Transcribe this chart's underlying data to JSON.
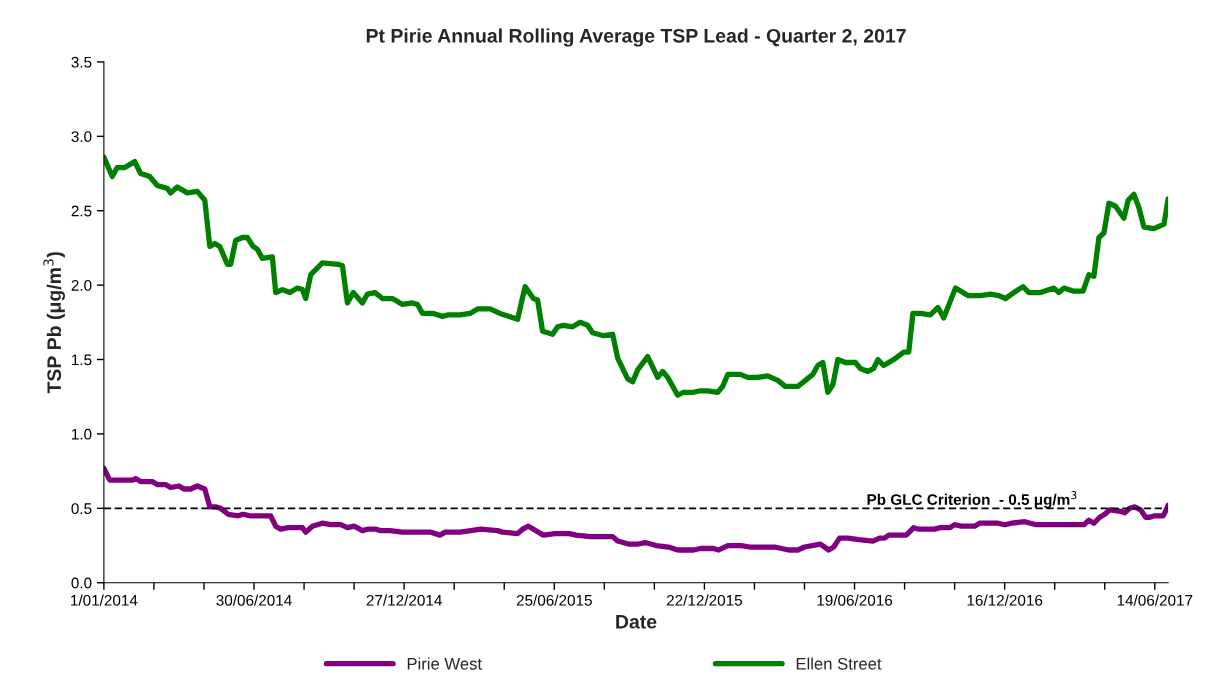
{
  "chart_data": {
    "type": "line",
    "title": "Pt Pirie Annual Rolling Average TSP Lead - Quarter 2, 2017",
    "xlabel": "Date",
    "ylabel": "TSP Pb (μg/m$^{3}$)",
    "xlim": [
      "2014-01-01",
      "2017-06-30"
    ],
    "xticks": [
      {
        "value": "2014-01-01",
        "label": "1/01/2014"
      },
      {
        "value": "2014-03-02",
        "label": null
      },
      {
        "value": "2014-05-01",
        "label": null
      },
      {
        "value": "2014-06-30",
        "label": "30/06/2014"
      },
      {
        "value": "2014-08-29",
        "label": null
      },
      {
        "value": "2014-10-28",
        "label": null
      },
      {
        "value": "2014-12-27",
        "label": "27/12/2014"
      },
      {
        "value": "2015-02-25",
        "label": null
      },
      {
        "value": "2015-04-26",
        "label": null
      },
      {
        "value": "2015-06-25",
        "label": "25/06/2015"
      },
      {
        "value": "2015-08-24",
        "label": null
      },
      {
        "value": "2015-10-23",
        "label": null
      },
      {
        "value": "2015-12-22",
        "label": "22/12/2015"
      },
      {
        "value": "2016-02-20",
        "label": null
      },
      {
        "value": "2016-04-20",
        "label": null
      },
      {
        "value": "2016-06-19",
        "label": "19/06/2016"
      },
      {
        "value": "2016-08-18",
        "label": null
      },
      {
        "value": "2016-10-17",
        "label": null
      },
      {
        "value": "2016-12-16",
        "label": "16/12/2016"
      },
      {
        "value": "2017-02-14",
        "label": null
      },
      {
        "value": "2017-04-15",
        "label": null
      },
      {
        "value": "2017-06-14",
        "label": "14/06/2017"
      }
    ],
    "ylim": [
      0,
      3.5
    ],
    "yticks": [
      {
        "value": 0,
        "label": "0.0"
      },
      {
        "value": 0.5,
        "label": "0.5"
      },
      {
        "value": 1,
        "label": "1.0"
      },
      {
        "value": 1.5,
        "label": "1.5"
      },
      {
        "value": 2,
        "label": "2.0"
      },
      {
        "value": 2.5,
        "label": "2.5"
      },
      {
        "value": 3,
        "label": "3.0"
      },
      {
        "value": 3.5,
        "label": "3.5"
      }
    ],
    "grid": false,
    "legend": "bottom",
    "marker": "none",
    "line_style": "solid",
    "ref_lines": [
      {
        "axis": "y",
        "value": 0.5,
        "label": "Pb GLC Criterion  - 0.5 μg/m$^{3}$",
        "color": "#000000",
        "line_style": "dashed"
      }
    ],
    "series": [
      {
        "name": "Pirie West",
        "color": "#800080",
        "x": [
          "2014-01-01",
          "2014-01-08",
          "2014-02-05",
          "2014-02-08",
          "2014-02-14",
          "2014-02-28",
          "2014-03-06",
          "2014-03-16",
          "2014-03-22",
          "2014-04-01",
          "2014-04-07",
          "2014-04-15",
          "2014-04-23",
          "2014-05-02",
          "2014-05-08",
          "2014-05-15",
          "2014-05-21",
          "2014-05-30",
          "2014-06-11",
          "2014-06-17",
          "2014-06-25",
          "2014-07-20",
          "2014-07-26",
          "2014-08-01",
          "2014-08-10",
          "2014-08-27",
          "2014-08-31",
          "2014-09-08",
          "2014-09-20",
          "2014-09-30",
          "2014-10-12",
          "2014-10-20",
          "2014-10-28",
          "2014-11-07",
          "2014-11-13",
          "2014-11-23",
          "2014-11-29",
          "2014-12-10",
          "2014-12-25",
          "2015-01-28",
          "2015-02-08",
          "2015-02-14",
          "2015-03-04",
          "2015-03-17",
          "2015-03-29",
          "2015-04-18",
          "2015-04-24",
          "2015-05-12",
          "2015-05-18",
          "2015-05-25",
          "2015-06-03",
          "2015-06-12",
          "2015-06-26",
          "2015-07-13",
          "2015-07-21",
          "2015-08-07",
          "2015-09-03",
          "2015-09-09",
          "2015-09-22",
          "2015-10-04",
          "2015-10-12",
          "2015-10-25",
          "2015-11-09",
          "2015-11-20",
          "2015-12-09",
          "2015-12-17",
          "2016-01-02",
          "2016-01-08",
          "2016-01-19",
          "2016-02-04",
          "2016-02-14",
          "2016-03-15",
          "2016-04-01",
          "2016-04-12",
          "2016-04-20",
          "2016-05-09",
          "2016-05-19",
          "2016-05-25",
          "2016-06-01",
          "2016-06-11",
          "2016-06-24",
          "2016-07-11",
          "2016-07-19",
          "2016-07-25",
          "2016-07-30",
          "2016-08-20",
          "2016-08-29",
          "2016-09-04",
          "2016-09-23",
          "2016-09-30",
          "2016-10-11",
          "2016-10-17",
          "2016-10-25",
          "2016-11-10",
          "2016-11-16",
          "2016-12-08",
          "2016-12-16",
          "2016-12-24",
          "2017-01-09",
          "2017-01-23",
          "2017-03-21",
          "2017-03-27",
          "2017-04-02",
          "2017-04-09",
          "2017-04-15",
          "2017-04-21",
          "2017-05-04",
          "2017-05-09",
          "2017-05-15",
          "2017-05-21",
          "2017-05-28",
          "2017-06-03",
          "2017-06-08",
          "2017-06-14",
          "2017-06-24",
          "2017-06-27",
          "2017-06-30"
        ],
        "values": [
          0.77,
          0.69,
          0.69,
          0.7,
          0.68,
          0.68,
          0.66,
          0.66,
          0.64,
          0.65,
          0.63,
          0.63,
          0.65,
          0.63,
          0.51,
          0.51,
          0.5,
          0.46,
          0.45,
          0.46,
          0.45,
          0.45,
          0.38,
          0.36,
          0.37,
          0.37,
          0.34,
          0.38,
          0.4,
          0.39,
          0.39,
          0.37,
          0.38,
          0.35,
          0.36,
          0.36,
          0.35,
          0.35,
          0.34,
          0.34,
          0.32,
          0.34,
          0.34,
          0.35,
          0.36,
          0.35,
          0.34,
          0.33,
          0.36,
          0.38,
          0.35,
          0.32,
          0.33,
          0.33,
          0.32,
          0.31,
          0.31,
          0.28,
          0.26,
          0.26,
          0.27,
          0.25,
          0.24,
          0.22,
          0.22,
          0.23,
          0.23,
          0.22,
          0.25,
          0.25,
          0.24,
          0.24,
          0.22,
          0.22,
          0.24,
          0.26,
          0.22,
          0.24,
          0.3,
          0.3,
          0.29,
          0.28,
          0.3,
          0.3,
          0.32,
          0.32,
          0.37,
          0.36,
          0.36,
          0.37,
          0.37,
          0.39,
          0.38,
          0.38,
          0.4,
          0.4,
          0.39,
          0.4,
          0.41,
          0.39,
          0.39,
          0.42,
          0.4,
          0.44,
          0.46,
          0.49,
          0.48,
          0.47,
          0.5,
          0.51,
          0.49,
          0.44,
          0.44,
          0.45,
          0.45,
          0.48,
          0.52
        ]
      },
      {
        "name": "Ellen Street",
        "color": "#008000",
        "x": [
          "2014-01-01",
          "2014-01-11",
          "2014-01-17",
          "2014-01-26",
          "2014-02-07",
          "2014-02-14",
          "2014-02-25",
          "2014-03-06",
          "2014-03-18",
          "2014-03-22",
          "2014-03-30",
          "2014-04-11",
          "2014-04-23",
          "2014-05-02",
          "2014-05-08",
          "2014-05-14",
          "2014-05-20",
          "2014-05-29",
          "2014-06-02",
          "2014-06-08",
          "2014-06-16",
          "2014-06-22",
          "2014-06-29",
          "2014-07-04",
          "2014-07-10",
          "2014-07-22",
          "2014-07-26",
          "2014-08-03",
          "2014-08-12",
          "2014-08-21",
          "2014-08-27",
          "2014-08-31",
          "2014-09-06",
          "2014-09-20",
          "2014-10-09",
          "2014-10-14",
          "2014-10-20",
          "2014-10-27",
          "2014-11-07",
          "2014-11-13",
          "2014-11-22",
          "2014-12-01",
          "2014-12-13",
          "2014-12-25",
          "2015-01-06",
          "2015-01-12",
          "2015-01-18",
          "2015-01-31",
          "2015-02-11",
          "2015-02-18",
          "2015-03-04",
          "2015-03-16",
          "2015-03-25",
          "2015-04-09",
          "2015-04-21",
          "2015-05-12",
          "2015-05-21",
          "2015-05-31",
          "2015-06-05",
          "2015-06-11",
          "2015-06-23",
          "2015-06-29",
          "2015-07-06",
          "2015-07-17",
          "2015-07-26",
          "2015-08-04",
          "2015-08-10",
          "2015-08-23",
          "2015-09-03",
          "2015-09-09",
          "2015-09-21",
          "2015-09-27",
          "2015-10-03",
          "2015-10-15",
          "2015-10-27",
          "2015-11-02",
          "2015-11-08",
          "2015-11-20",
          "2015-11-27",
          "2015-12-09",
          "2015-12-17",
          "2015-12-26",
          "2016-01-07",
          "2016-01-13",
          "2016-01-19",
          "2016-02-03",
          "2016-02-12",
          "2016-02-24",
          "2016-03-07",
          "2016-03-19",
          "2016-03-28",
          "2016-04-12",
          "2016-04-19",
          "2016-04-30",
          "2016-05-06",
          "2016-05-12",
          "2016-05-18",
          "2016-05-24",
          "2016-05-30",
          "2016-06-08",
          "2016-06-20",
          "2016-06-26",
          "2016-07-05",
          "2016-07-12",
          "2016-07-17",
          "2016-07-24",
          "2016-08-05",
          "2016-08-17",
          "2016-08-23",
          "2016-08-28",
          "2016-09-06",
          "2016-09-18",
          "2016-09-27",
          "2016-10-04",
          "2016-10-18",
          "2016-11-02",
          "2016-11-17",
          "2016-11-29",
          "2016-12-09",
          "2016-12-17",
          "2016-12-27",
          "2017-01-07",
          "2017-01-14",
          "2017-01-28",
          "2017-02-13",
          "2017-02-19",
          "2017-02-25",
          "2017-03-08",
          "2017-03-20",
          "2017-03-27",
          "2017-04-02",
          "2017-04-08",
          "2017-04-14",
          "2017-04-20",
          "2017-04-28",
          "2017-05-08",
          "2017-05-13",
          "2017-05-20",
          "2017-05-26",
          "2017-06-01",
          "2017-06-13",
          "2017-06-25",
          "2017-06-30"
        ],
        "values": [
          2.86,
          2.73,
          2.79,
          2.79,
          2.83,
          2.75,
          2.73,
          2.67,
          2.65,
          2.62,
          2.66,
          2.62,
          2.63,
          2.57,
          2.26,
          2.28,
          2.26,
          2.14,
          2.14,
          2.3,
          2.32,
          2.32,
          2.26,
          2.24,
          2.18,
          2.19,
          1.95,
          1.97,
          1.95,
          1.98,
          1.97,
          1.91,
          2.07,
          2.15,
          2.14,
          2.13,
          1.88,
          1.95,
          1.88,
          1.94,
          1.95,
          1.91,
          1.91,
          1.87,
          1.88,
          1.87,
          1.81,
          1.81,
          1.79,
          1.8,
          1.8,
          1.81,
          1.84,
          1.84,
          1.81,
          1.77,
          1.99,
          1.91,
          1.9,
          1.69,
          1.67,
          1.72,
          1.73,
          1.72,
          1.75,
          1.73,
          1.68,
          1.66,
          1.67,
          1.51,
          1.37,
          1.35,
          1.43,
          1.52,
          1.38,
          1.42,
          1.38,
          1.26,
          1.28,
          1.28,
          1.29,
          1.29,
          1.28,
          1.32,
          1.4,
          1.4,
          1.38,
          1.38,
          1.39,
          1.36,
          1.32,
          1.32,
          1.35,
          1.4,
          1.46,
          1.48,
          1.28,
          1.33,
          1.5,
          1.48,
          1.48,
          1.44,
          1.42,
          1.44,
          1.5,
          1.46,
          1.5,
          1.55,
          1.55,
          1.81,
          1.81,
          1.8,
          1.85,
          1.78,
          1.98,
          1.93,
          1.93,
          1.94,
          1.93,
          1.91,
          1.95,
          1.99,
          1.95,
          1.95,
          1.98,
          1.95,
          1.98,
          1.96,
          1.96,
          2.07,
          2.06,
          2.32,
          2.35,
          2.55,
          2.53,
          2.45,
          2.57,
          2.61,
          2.52,
          2.39,
          2.38,
          2.41,
          2.58
        ]
      }
    ]
  }
}
